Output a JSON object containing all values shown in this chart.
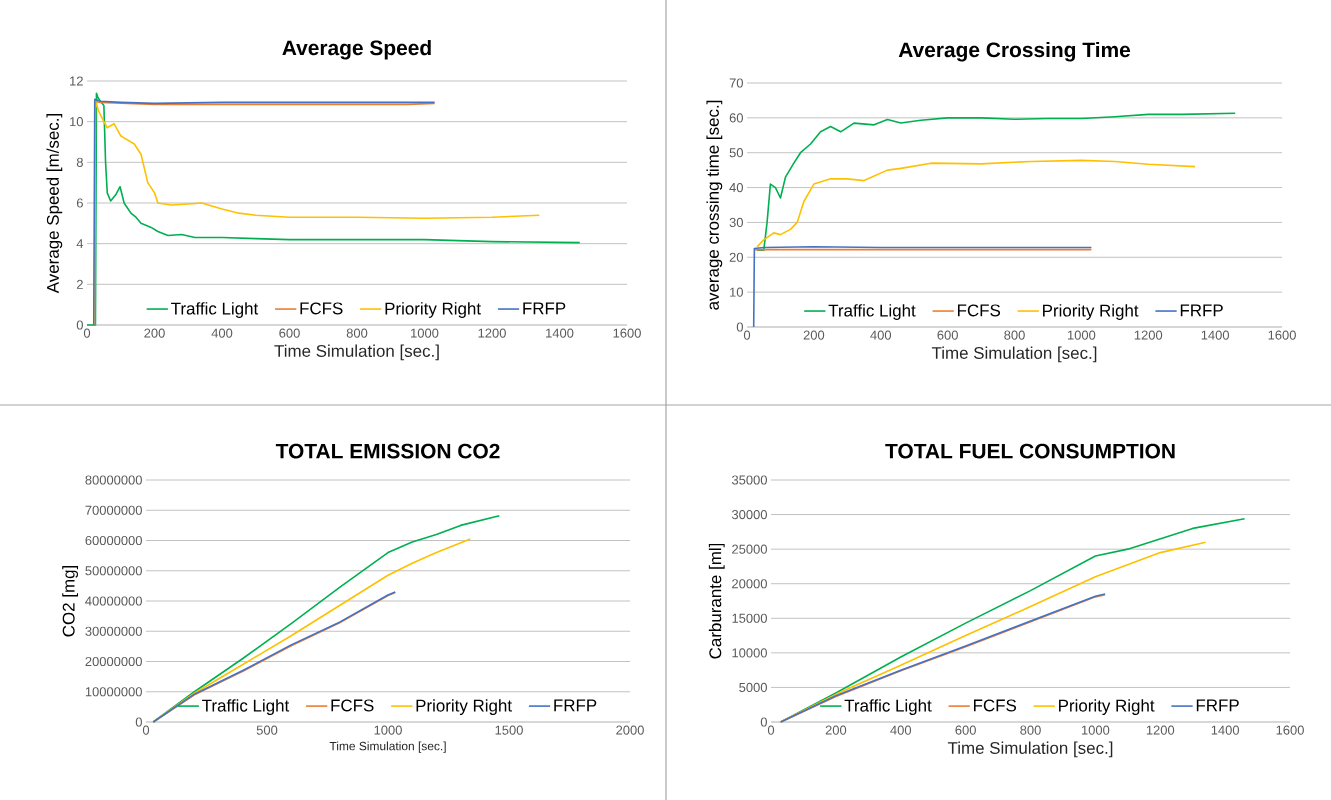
{
  "chart_data": [
    {
      "type": "line",
      "title": "Average Speed",
      "xlabel": "Time Simulation [sec.]",
      "ylabel": "Average Speed  [m/sec.]",
      "xlim": [
        0,
        1600
      ],
      "xticks": [
        0,
        200,
        400,
        600,
        800,
        1000,
        1200,
        1400,
        1600
      ],
      "ylim": [
        0,
        12
      ],
      "yticks": [
        0,
        2,
        4,
        6,
        8,
        10,
        12
      ],
      "grid": "y",
      "legend": "bottom",
      "series": [
        {
          "name": "Traffic Light",
          "color": "#00b050",
          "x": [
            0,
            25,
            28,
            32,
            40,
            50,
            55,
            60,
            70,
            85,
            98,
            110,
            130,
            145,
            160,
            190,
            210,
            240,
            280,
            320,
            400,
            500,
            600,
            700,
            800,
            1000,
            1200,
            1460
          ],
          "values": [
            0,
            0,
            11.4,
            11.2,
            11.0,
            10.8,
            8.0,
            6.5,
            6.1,
            6.4,
            6.8,
            6.0,
            5.5,
            5.3,
            5.0,
            4.8,
            4.6,
            4.4,
            4.45,
            4.3,
            4.3,
            4.25,
            4.2,
            4.2,
            4.2,
            4.2,
            4.1,
            4.05
          ]
        },
        {
          "name": "FCFS",
          "color": "#ed7d31",
          "x": [
            23,
            40,
            200,
            600,
            800,
            950,
            1030
          ],
          "values": [
            11.0,
            10.95,
            10.85,
            10.85,
            10.85,
            10.85,
            10.9
          ]
        },
        {
          "name": "Priority Right",
          "color": "#ffc000",
          "x": [
            22,
            25,
            35,
            50,
            60,
            80,
            100,
            120,
            140,
            160,
            180,
            200,
            210,
            250,
            300,
            340,
            400,
            450,
            500,
            600,
            800,
            1000,
            1200,
            1340
          ],
          "values": [
            0,
            11,
            10.5,
            10.0,
            9.7,
            9.9,
            9.3,
            9.1,
            8.9,
            8.4,
            7.0,
            6.5,
            6.0,
            5.9,
            5.95,
            6.0,
            5.7,
            5.5,
            5.4,
            5.3,
            5.3,
            5.25,
            5.3,
            5.4
          ]
        },
        {
          "name": "FRFP",
          "color": "#4472c4",
          "x": [
            20,
            23,
            40,
            100,
            200,
            400,
            600,
            800,
            1030
          ],
          "values": [
            0,
            11.1,
            11.0,
            10.95,
            10.9,
            10.95,
            10.95,
            10.95,
            10.95
          ]
        }
      ]
    },
    {
      "type": "line",
      "title": "Average Crossing Time",
      "xlabel": "Time Simulation [sec.]",
      "ylabel": "average crossing time  [sec.]",
      "xlim": [
        0,
        1600
      ],
      "xticks": [
        0,
        200,
        400,
        600,
        800,
        1000,
        1200,
        1400,
        1600
      ],
      "ylim": [
        0,
        70
      ],
      "yticks": [
        0,
        10,
        20,
        30,
        40,
        50,
        60,
        70
      ],
      "grid": "y",
      "legend": "bottom",
      "series": [
        {
          "name": "Traffic Light",
          "color": "#00b050",
          "x": [
            30,
            50,
            60,
            70,
            85,
            100,
            115,
            140,
            160,
            190,
            220,
            250,
            280,
            320,
            380,
            420,
            460,
            520,
            600,
            700,
            800,
            900,
            1000,
            1100,
            1200,
            1300,
            1460
          ],
          "values": [
            22,
            22,
            30,
            41,
            40,
            37,
            43,
            47,
            50,
            52.5,
            56,
            57.5,
            56,
            58.5,
            58,
            59.5,
            58.5,
            59.3,
            60,
            60,
            59.6,
            59.8,
            59.8,
            60.3,
            61,
            61,
            61.3
          ]
        },
        {
          "name": "FCFS",
          "color": "#ed7d31",
          "x": [
            22,
            1030
          ],
          "values": [
            22.2,
            22.2
          ]
        },
        {
          "name": "Priority Right",
          "color": "#ffc000",
          "x": [
            30,
            50,
            80,
            100,
            130,
            150,
            170,
            200,
            250,
            300,
            350,
            420,
            460,
            550,
            700,
            850,
            1000,
            1100,
            1200,
            1340
          ],
          "values": [
            23,
            25,
            27,
            26.5,
            28,
            30,
            36,
            41,
            42.5,
            42.5,
            42,
            45,
            45.5,
            47,
            46.8,
            47.5,
            47.8,
            47.5,
            46.7,
            46
          ]
        },
        {
          "name": "FRFP",
          "color": "#4472c4",
          "x": [
            20,
            22,
            50,
            200,
            400,
            1030
          ],
          "values": [
            0,
            22.5,
            22.8,
            23,
            22.8,
            22.8
          ]
        }
      ]
    },
    {
      "type": "line",
      "title": "TOTAL EMISSION CO2",
      "xlabel": "Time Simulation [sec.]",
      "ylabel": "CO2 [mg]",
      "xlim": [
        0,
        2000
      ],
      "xticks": [
        0,
        500,
        1000,
        1500,
        2000
      ],
      "ylim": [
        0,
        80000000
      ],
      "yticks": [
        0,
        10000000,
        20000000,
        30000000,
        40000000,
        50000000,
        60000000,
        70000000,
        80000000
      ],
      "grid": "y",
      "legend": "bottom",
      "series": [
        {
          "name": "Traffic Light",
          "color": "#00b050",
          "x": [
            30,
            200,
            400,
            600,
            800,
            1000,
            1100,
            1200,
            1300,
            1460
          ],
          "values": [
            0,
            10000000,
            21000000,
            32500000,
            44500000,
            56000000,
            59500000,
            62000000,
            65000000,
            68200000
          ]
        },
        {
          "name": "FCFS",
          "color": "#ed7d31",
          "x": [
            30,
            200,
            400,
            600,
            800,
            1000,
            1030
          ],
          "values": [
            0,
            9000000,
            16800000,
            25200000,
            32800000,
            41800000,
            42800000
          ]
        },
        {
          "name": "Priority Right",
          "color": "#ffc000",
          "x": [
            30,
            200,
            400,
            600,
            800,
            1000,
            1100,
            1200,
            1340
          ],
          "values": [
            0,
            9500000,
            19000000,
            28500000,
            38500000,
            48500000,
            52500000,
            56000000,
            60500000
          ]
        },
        {
          "name": "FRFP",
          "color": "#4472c4",
          "x": [
            30,
            200,
            400,
            600,
            800,
            1000,
            1030
          ],
          "values": [
            0,
            9200000,
            17000000,
            25500000,
            33000000,
            42000000,
            43000000
          ]
        }
      ]
    },
    {
      "type": "line",
      "title": "TOTAL FUEL CONSUMPTION",
      "xlabel": "Time Simulation [sec.]",
      "ylabel": "Carburante [ml]",
      "xlim": [
        0,
        1600
      ],
      "xticks": [
        0,
        200,
        400,
        600,
        800,
        1000,
        1200,
        1400,
        1600
      ],
      "ylim": [
        0,
        35000
      ],
      "yticks": [
        0,
        5000,
        10000,
        15000,
        20000,
        25000,
        30000,
        35000
      ],
      "grid": "y",
      "legend": "bottom",
      "series": [
        {
          "name": "Traffic Light",
          "color": "#00b050",
          "x": [
            30,
            200,
            400,
            600,
            800,
            1000,
            1100,
            1200,
            1300,
            1460
          ],
          "values": [
            0,
            4200,
            9400,
            14300,
            19000,
            24000,
            25000,
            26500,
            28000,
            29400
          ]
        },
        {
          "name": "FCFS",
          "color": "#ed7d31",
          "x": [
            30,
            200,
            400,
            600,
            800,
            1000,
            1030
          ],
          "values": [
            0,
            3700,
            7400,
            10900,
            14500,
            18100,
            18400
          ]
        },
        {
          "name": "Priority Right",
          "color": "#ffc000",
          "x": [
            30,
            200,
            400,
            600,
            800,
            1000,
            1200,
            1340
          ],
          "values": [
            0,
            4000,
            8200,
            12500,
            16700,
            21000,
            24500,
            26000
          ]
        },
        {
          "name": "FRFP",
          "color": "#4472c4",
          "x": [
            30,
            200,
            400,
            600,
            800,
            1000,
            1030
          ],
          "values": [
            0,
            3800,
            7500,
            11000,
            14600,
            18200,
            18500
          ]
        }
      ]
    }
  ]
}
